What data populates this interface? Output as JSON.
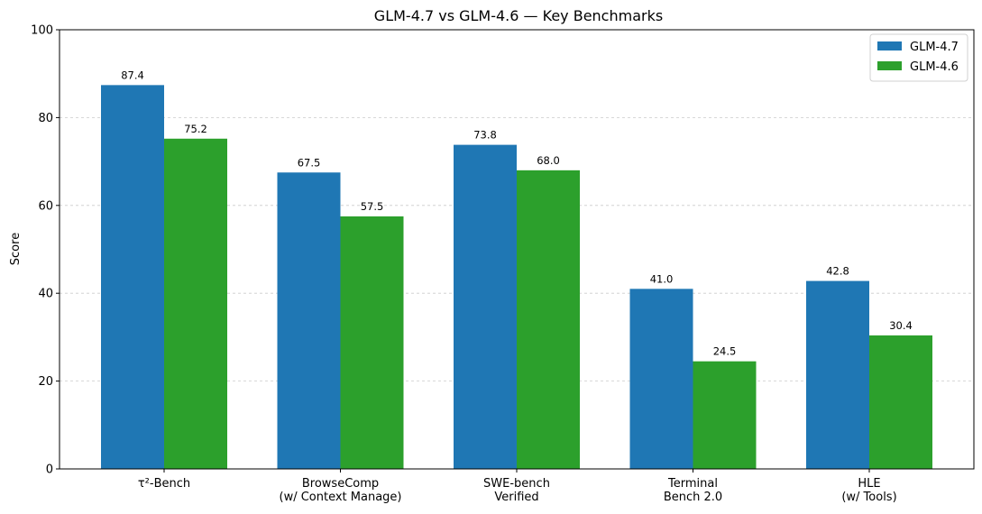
{
  "chart_data": {
    "type": "bar",
    "title": "GLM-4.7 vs GLM-4.6 — Key Benchmarks",
    "xlabel": "",
    "ylabel": "Score",
    "ylim": [
      0,
      100
    ],
    "yticks": [
      0,
      20,
      40,
      60,
      80,
      100
    ],
    "grid": "y-dashed",
    "legend_position": "top-right",
    "categories": [
      [
        "τ²-Bench"
      ],
      [
        "BrowseComp",
        "(w/ Context Manage)"
      ],
      [
        "SWE-bench",
        "Verified"
      ],
      [
        "Terminal",
        "Bench 2.0"
      ],
      [
        "HLE",
        "(w/ Tools)"
      ]
    ],
    "series": [
      {
        "name": "GLM-4.7",
        "color": "#1f77b4",
        "values": [
          87.4,
          67.5,
          73.8,
          41.0,
          42.8
        ],
        "labels": [
          "87.4",
          "67.5",
          "73.8",
          "41.0",
          "42.8"
        ]
      },
      {
        "name": "GLM-4.6",
        "color": "#2ca02c",
        "values": [
          75.2,
          57.5,
          68.0,
          24.5,
          30.4
        ],
        "labels": [
          "75.2",
          "57.5",
          "68.0",
          "24.5",
          "30.4"
        ]
      }
    ]
  }
}
